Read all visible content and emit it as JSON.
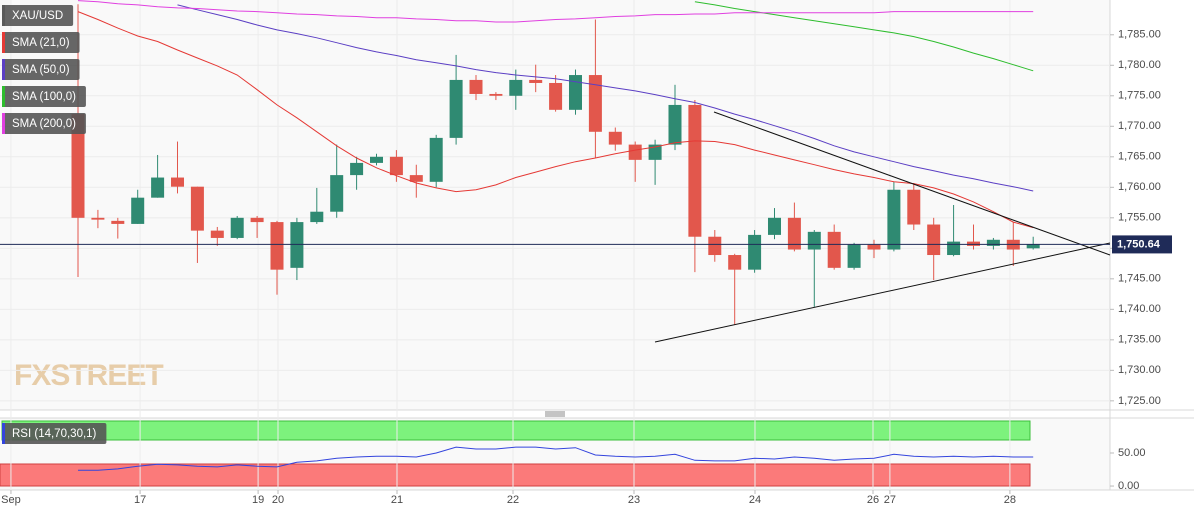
{
  "chart_data": [
    {
      "type": "candlestick",
      "watermark": "FXSTREET",
      "ylim": [
        1723.5,
        1790.7
      ],
      "yticks": [
        {
          "value": 1725,
          "label": "1,725.00"
        },
        {
          "value": 1730,
          "label": "1,730.00"
        },
        {
          "value": 1735,
          "label": "1,735.00"
        },
        {
          "value": 1740,
          "label": "1,740.00"
        },
        {
          "value": 1745,
          "label": "1,745.00"
        },
        {
          "value": 1750,
          "label": "1,750.00"
        },
        {
          "value": 1755,
          "label": "1,755.00"
        },
        {
          "value": 1760,
          "label": "1,760.00"
        },
        {
          "value": 1765,
          "label": "1,765.00"
        },
        {
          "value": 1770,
          "label": "1,770.00"
        },
        {
          "value": 1775,
          "label": "1,775.00"
        },
        {
          "value": 1780,
          "label": "1,780.00"
        },
        {
          "value": 1785,
          "label": "1,785.00"
        }
      ],
      "xlim": [
        -3.92,
        51.86
      ],
      "xticks": [
        {
          "value": -3.37,
          "label": "Sep"
        },
        {
          "value": 3.12,
          "label": "17"
        },
        {
          "value": 9.05,
          "label": "19"
        },
        {
          "value": 10.05,
          "label": "20"
        },
        {
          "value": 16.03,
          "label": "21"
        },
        {
          "value": 21.86,
          "label": "22"
        },
        {
          "value": 27.94,
          "label": "23"
        },
        {
          "value": 34.02,
          "label": "24"
        },
        {
          "value": 39.95,
          "label": "26"
        },
        {
          "value": 40.8,
          "label": "27"
        },
        {
          "value": 46.83,
          "label": "28"
        }
      ],
      "grid": true,
      "last_price": {
        "value": 1750.64,
        "label": "1,750.64"
      },
      "series": [
        {
          "name": "XAU/USD",
          "type": "candlestick",
          "color": "#5a5a5a",
          "up_color": "#2f8a72",
          "down_color": "#e2574c",
          "open": [
            1772,
            1755,
            1754.5,
            1754,
            1758.3,
            1761.6,
            1760.1,
            1752.9,
            1751.7,
            1755,
            1754.3,
            1746.8,
            1754.3,
            1756,
            1762,
            1764,
            1765,
            1762,
            1760.9,
            1768.1,
            1777.6,
            1775.3,
            1775,
            1777.6,
            1777.1,
            1772.7,
            1778.4,
            1769.1,
            1767,
            1764.5,
            1767,
            1773.5,
            1751.9,
            1748.9,
            1746.5,
            1752.2,
            1755,
            1749.8,
            1752.7,
            1746.8,
            1750.6,
            1749.8,
            1759.6,
            1753.9,
            1748.9,
            1751.1,
            1750.4,
            1751.4,
            1750
          ],
          "high": [
            1790,
            1756.3,
            1755,
            1759.6,
            1765.3,
            1767.5,
            1760.1,
            1753.5,
            1755.3,
            1755.3,
            1754.5,
            1755,
            1759.9,
            1767,
            1765,
            1765.5,
            1766.1,
            1763.7,
            1768.6,
            1781.7,
            1778.4,
            1775.6,
            1779.3,
            1780.1,
            1778.4,
            1779.3,
            1787.5,
            1769.8,
            1767.5,
            1767.8,
            1776.8,
            1774.3,
            1753,
            1749.1,
            1753,
            1756.6,
            1757.5,
            1753,
            1753.9,
            1750.9,
            1751.4,
            1760.9,
            1760.7,
            1755,
            1757.1,
            1753.9,
            1751.7,
            1754.3,
            1751.9
          ],
          "low": [
            1745.3,
            1753.3,
            1751.6,
            1754,
            1758.3,
            1759,
            1747.6,
            1750.4,
            1751.5,
            1751.7,
            1742.4,
            1744.8,
            1754,
            1755,
            1759.6,
            1763.6,
            1760.9,
            1758.3,
            1760,
            1767,
            1774.3,
            1774.3,
            1772.7,
            1775.6,
            1772.4,
            1771.9,
            1764.8,
            1766,
            1760.9,
            1760.4,
            1766.1,
            1746.1,
            1747.8,
            1737.5,
            1746,
            1751.5,
            1749.5,
            1740.4,
            1746.5,
            1746.5,
            1748.4,
            1749.5,
            1753,
            1744.8,
            1748.7,
            1749.8,
            1749.8,
            1747.1,
            1749.8
          ],
          "close": [
            1755,
            1754.7,
            1754,
            1758.3,
            1761.6,
            1760.1,
            1752.9,
            1751.7,
            1755,
            1754.3,
            1746.5,
            1754.3,
            1756,
            1762,
            1764,
            1765,
            1762,
            1760.9,
            1768.1,
            1777.6,
            1775.3,
            1775,
            1777.6,
            1777.1,
            1772.7,
            1778.4,
            1769.1,
            1767,
            1764.5,
            1767,
            1773.5,
            1751.9,
            1748.9,
            1746.5,
            1752.2,
            1755,
            1749.8,
            1752.7,
            1746.8,
            1750.6,
            1749.8,
            1759.6,
            1753.9,
            1748.9,
            1751.1,
            1750.4,
            1751.4,
            1749.8,
            1750.64
          ]
        },
        {
          "name": "SMA (21,0)",
          "color": "#e53935",
          "values": [
            1788.8,
            1787.5,
            1786.1,
            1784.8,
            1783.9,
            1782.5,
            1781.2,
            1779.9,
            1778.4,
            1776.0,
            1773.5,
            1771.4,
            1769.1,
            1766.8,
            1764.8,
            1763.2,
            1761.9,
            1760.7,
            1759.9,
            1759.3,
            1759.6,
            1760.4,
            1761.6,
            1762.5,
            1763.4,
            1764.2,
            1764.8,
            1765.5,
            1766.1,
            1766.6,
            1767.3,
            1767.6,
            1767.5,
            1767.0,
            1766.1,
            1765.3,
            1764.5,
            1763.7,
            1762.9,
            1762.2,
            1761.6,
            1760.9,
            1760.6,
            1759.9,
            1758.9,
            1757.6,
            1756.0,
            1754.3,
            1753.4
          ]
        },
        {
          "name": "SMA (50,0)",
          "color": "#5b3fc4",
          "values": [
            null,
            null,
            null,
            null,
            null,
            1789.9,
            1789.1,
            1788.3,
            1787.5,
            1786.6,
            1785.8,
            1785.2,
            1784.5,
            1783.7,
            1782.9,
            1782.2,
            1781.6,
            1780.9,
            1780.4,
            1779.9,
            1779.3,
            1778.8,
            1778.4,
            1778.1,
            1777.8,
            1777.3,
            1776.8,
            1776.3,
            1775.8,
            1775.2,
            1774.5,
            1773.9,
            1773.0,
            1772.0,
            1771.1,
            1770.1,
            1769.1,
            1768.0,
            1766.8,
            1765.8,
            1765.0,
            1764.2,
            1763.4,
            1762.7,
            1762.0,
            1761.4,
            1760.7,
            1760.1,
            1759.4
          ]
        },
        {
          "name": "SMA (100,0)",
          "color": "#2ebd2e",
          "values": [
            null,
            null,
            null,
            null,
            null,
            null,
            null,
            null,
            null,
            null,
            null,
            null,
            null,
            null,
            null,
            null,
            null,
            null,
            null,
            null,
            null,
            null,
            null,
            null,
            null,
            null,
            null,
            null,
            null,
            null,
            null,
            1790.4,
            1789.9,
            1789.3,
            1788.8,
            1788.3,
            1787.8,
            1787.3,
            1786.8,
            1786.3,
            1785.8,
            1785.3,
            1784.7,
            1783.9,
            1783.0,
            1782.0,
            1781.1,
            1780.1,
            1779.1
          ]
        },
        {
          "name": "SMA (200,0)",
          "color": "#e040e0",
          "values": [
            1790.6,
            1790.4,
            1790.1,
            1789.9,
            1789.6,
            1789.4,
            1789.3,
            1789.1,
            1788.9,
            1788.8,
            1788.6,
            1788.4,
            1788.3,
            1788.1,
            1788.0,
            1787.8,
            1787.8,
            1787.6,
            1787.5,
            1787.3,
            1787.3,
            1787.1,
            1787.1,
            1787.3,
            1787.5,
            1787.6,
            1787.8,
            1788.0,
            1788.1,
            1788.3,
            1788.3,
            1788.4,
            1788.4,
            1788.6,
            1788.6,
            1788.6,
            1788.6,
            1788.6,
            1788.6,
            1788.6,
            1788.6,
            1788.8,
            1788.8,
            1788.8,
            1788.8,
            1788.8,
            1788.8,
            1788.8,
            1788.8
          ]
        }
      ]
    },
    {
      "type": "line",
      "ylim": [
        -6,
        103
      ],
      "yticks": [
        {
          "value": 50,
          "label": "50.00"
        },
        {
          "value": 0,
          "label": "0.00"
        }
      ],
      "series": [
        {
          "name": "RSI (14,70,30,1)",
          "color": "#3344dd",
          "values": [
            24,
            24,
            26,
            30,
            33,
            32,
            30,
            29,
            32,
            30,
            29,
            36,
            38,
            42,
            44,
            45,
            45,
            44,
            50,
            59,
            56,
            56,
            59,
            59,
            56,
            58,
            47,
            45,
            44,
            45,
            48,
            39,
            38,
            38,
            42,
            41,
            44,
            42,
            39,
            41,
            42,
            48,
            45,
            44,
            45,
            44,
            45,
            44,
            44
          ]
        }
      ]
    }
  ]
}
